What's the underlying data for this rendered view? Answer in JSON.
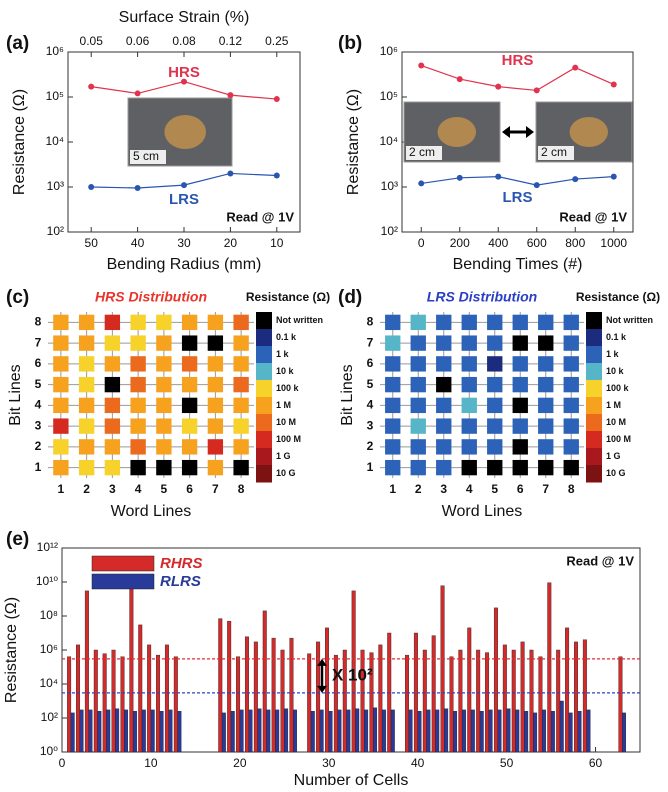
{
  "chart_data": [
    {
      "type": "line",
      "panel_label": "(a)",
      "xlabel": "Bending Radius (mm)",
      "ylabel": "Resistance (Ω)",
      "x2label": "Surface Strain (%)",
      "categories": [
        50,
        40,
        30,
        20,
        10
      ],
      "x2categories": [
        0.05,
        0.06,
        0.08,
        0.12,
        0.25
      ],
      "log_y": true,
      "ylim": [
        100,
        1000000
      ],
      "yticks": [
        {
          "value": 100,
          "label": "10²"
        },
        {
          "value": 1000,
          "label": "10³"
        },
        {
          "value": 10000,
          "label": "10⁴"
        },
        {
          "value": 100000,
          "label": "10⁵"
        },
        {
          "value": 1000000,
          "label": "10⁶"
        }
      ],
      "series": [
        {
          "name": "HRS",
          "color": "#e0334d",
          "values": [
            170000,
            120000,
            220000,
            110000,
            90000
          ]
        },
        {
          "name": "LRS",
          "color": "#2a55b0",
          "values": [
            1000,
            950,
            1100,
            2000,
            1800
          ]
        }
      ],
      "annotation": "Read @ 1V",
      "inset_labels": [
        "5 cm"
      ]
    },
    {
      "type": "line",
      "panel_label": "(b)",
      "xlabel": "Bending Times (#)",
      "ylabel": "Resistance (Ω)",
      "x": [
        0,
        200,
        400,
        600,
        800,
        1000
      ],
      "xlim": [
        -100,
        1100
      ],
      "xticks": [
        0,
        200,
        400,
        600,
        800,
        1000
      ],
      "log_y": true,
      "ylim": [
        100,
        1000000
      ],
      "yticks": [
        {
          "value": 100,
          "label": "10²"
        },
        {
          "value": 1000,
          "label": "10³"
        },
        {
          "value": 10000,
          "label": "10⁴"
        },
        {
          "value": 100000,
          "label": "10⁵"
        },
        {
          "value": 1000000,
          "label": "10⁶"
        }
      ],
      "series": [
        {
          "name": "HRS",
          "color": "#e0334d",
          "values": [
            500000,
            250000,
            170000,
            140000,
            450000,
            190000
          ]
        },
        {
          "name": "LRS",
          "color": "#2a55b0",
          "values": [
            1200,
            1600,
            1700,
            1100,
            1500,
            1700
          ]
        }
      ],
      "annotation": "Read @ 1V",
      "inset_labels": [
        "2 cm",
        "2 cm"
      ]
    },
    {
      "type": "heatmap",
      "panel_label": "(c)",
      "title": "HRS Distribution",
      "title_color": "#e8342a",
      "xlabel": "Word Lines",
      "ylabel": "Bit Lines",
      "x": [
        1,
        2,
        3,
        4,
        5,
        6,
        7,
        8
      ],
      "y": [
        1,
        2,
        3,
        4,
        5,
        6,
        7,
        8
      ],
      "values": [
        [
          1000000,
          300000,
          300000,
          null,
          null,
          null,
          1000000,
          null
        ],
        [
          300000,
          1000000,
          1000000,
          10000000,
          1000000,
          1000000,
          100000000,
          1000000
        ],
        [
          100000000,
          300000,
          10000000,
          1000000,
          1000000,
          300000,
          1000000,
          300000
        ],
        [
          1000000,
          1000000,
          10000000,
          1000000,
          1000000,
          null,
          1000000,
          1000000
        ],
        [
          1000000,
          300000,
          null,
          10000000,
          1000000,
          1000000,
          1000000,
          10000000
        ],
        [
          1000000,
          300000,
          1000000,
          10000000,
          1000000,
          10000000,
          1000000,
          1000000
        ],
        [
          1000000,
          1000000,
          300000,
          300000,
          1000000,
          null,
          null,
          1000000
        ],
        [
          1000000,
          1000000,
          100000000,
          300000,
          300000,
          1000000,
          1000000,
          10000000
        ]
      ],
      "colorbar_title": "Resistance (Ω)",
      "not_written_label": "Not written",
      "not_written_color": "#000000",
      "colorbar_ticks": [
        {
          "value": 100,
          "label": "0.1 k"
        },
        {
          "value": 1000,
          "label": "1 k"
        },
        {
          "value": 10000,
          "label": "10 k"
        },
        {
          "value": 100000,
          "label": "100 k"
        },
        {
          "value": 1000000,
          "label": "1 M"
        },
        {
          "value": 10000000,
          "label": "10 M"
        },
        {
          "value": 100000000,
          "label": "100 M"
        },
        {
          "value": 1000000000,
          "label": "1 G"
        },
        {
          "value": 10000000000,
          "label": "10 G"
        }
      ],
      "colorbar_colors": [
        "#1b2c7e",
        "#2c62b8",
        "#56b6c8",
        "#f6d22a",
        "#f6a21e",
        "#ec6a1e",
        "#d42a20",
        "#a8181c",
        "#7c1212"
      ]
    },
    {
      "type": "heatmap",
      "panel_label": "(d)",
      "title": "LRS Distribution",
      "title_color": "#2a3fc4",
      "xlabel": "Word Lines",
      "ylabel": "Bit Lines",
      "x": [
        1,
        2,
        3,
        4,
        5,
        6,
        7,
        8
      ],
      "y": [
        1,
        2,
        3,
        4,
        5,
        6,
        7,
        8
      ],
      "values": [
        [
          1000,
          1000,
          1000,
          null,
          null,
          null,
          null,
          null
        ],
        [
          1000,
          1000,
          1000,
          1000,
          1000,
          null,
          1000,
          1000
        ],
        [
          1000,
          10000,
          1000,
          1000,
          1000,
          1000,
          1000,
          1000
        ],
        [
          1000,
          1000,
          1000,
          10000,
          1000,
          null,
          1000,
          1000
        ],
        [
          1000,
          1000,
          null,
          1000,
          1000,
          1000,
          1000,
          1000
        ],
        [
          1000,
          1000,
          1000,
          1000,
          100,
          1000,
          1000,
          1000
        ],
        [
          10000,
          1000,
          1000,
          1000,
          1000,
          null,
          null,
          1000
        ],
        [
          1000,
          10000,
          1000,
          1000,
          1000,
          1000,
          1000,
          1000
        ]
      ],
      "colorbar_title": "Resistance (Ω)",
      "not_written_label": "Not written",
      "not_written_color": "#000000",
      "colorbar_ticks": [
        {
          "value": 100,
          "label": "0.1 k"
        },
        {
          "value": 1000,
          "label": "1 k"
        },
        {
          "value": 10000,
          "label": "10 k"
        },
        {
          "value": 100000,
          "label": "100 k"
        },
        {
          "value": 1000000,
          "label": "1 M"
        },
        {
          "value": 10000000,
          "label": "10 M"
        },
        {
          "value": 100000000,
          "label": "100 M"
        },
        {
          "value": 1000000000,
          "label": "1 G"
        },
        {
          "value": 10000000000,
          "label": "10 G"
        }
      ],
      "colorbar_colors": [
        "#1b2c7e",
        "#2c62b8",
        "#56b6c8",
        "#f6d22a",
        "#f6a21e",
        "#ec6a1e",
        "#d42a20",
        "#a8181c",
        "#7c1212"
      ]
    },
    {
      "type": "bar",
      "panel_label": "(e)",
      "xlabel": "Number of Cells",
      "ylabel": "Resistance (Ω)",
      "log_y": true,
      "xlim": [
        0,
        65
      ],
      "xticks": [
        0,
        10,
        20,
        30,
        40,
        50,
        60
      ],
      "ylim": [
        1,
        1000000000000
      ],
      "yticks": [
        {
          "value": 1,
          "label": "10⁰"
        },
        {
          "value": 100,
          "label": "10²"
        },
        {
          "value": 10000,
          "label": "10⁴"
        },
        {
          "value": 1000000,
          "label": "10⁶"
        },
        {
          "value": 100000000,
          "label": "10⁸"
        },
        {
          "value": 10000000000,
          "label": "10¹⁰"
        },
        {
          "value": 1000000000000,
          "label": "10¹²"
        }
      ],
      "x": [
        1,
        2,
        3,
        4,
        5,
        6,
        7,
        8,
        9,
        10,
        11,
        12,
        13,
        18,
        19,
        20,
        21,
        22,
        23,
        24,
        25,
        26,
        28,
        29,
        30,
        31,
        32,
        33,
        34,
        35,
        36,
        37,
        39,
        40,
        41,
        42,
        43,
        44,
        45,
        46,
        47,
        48,
        49,
        50,
        51,
        52,
        53,
        54,
        55,
        56,
        57,
        58,
        59,
        63
      ],
      "series": [
        {
          "name": "RHRS",
          "color": "#d42a2a",
          "values": [
            400000,
            2000000,
            3000000000,
            1000000,
            600000,
            1000000,
            400000,
            4000000000,
            30000000,
            2000000,
            500000,
            2000000,
            400000,
            70000000,
            50000000,
            400000,
            6000000,
            3000000,
            200000000,
            5000000,
            1000000,
            5000000,
            600000,
            3000000,
            20000000,
            500000,
            1000000,
            3000000000,
            1000000,
            700000,
            2000000,
            10000000,
            500000,
            10000000,
            1000000,
            7000000,
            6000000000,
            400000,
            1000000,
            20000000,
            1000000,
            700000,
            300000000,
            2000000,
            1000000,
            3000000,
            1000000,
            400000,
            9000000000,
            1000000,
            20000000,
            3000000,
            4000000,
            400000
          ]
        },
        {
          "name": "RLRS",
          "color": "#283a9a",
          "values": [
            200,
            300,
            300,
            250,
            300,
            350,
            300,
            250,
            300,
            300,
            250,
            300,
            250,
            200,
            250,
            300,
            300,
            350,
            300,
            300,
            350,
            300,
            250,
            300,
            250,
            300,
            300,
            350,
            300,
            400,
            300,
            300,
            300,
            250,
            300,
            300,
            350,
            250,
            300,
            300,
            250,
            300,
            300,
            350,
            300,
            250,
            200,
            300,
            250,
            1000,
            200,
            250,
            300,
            200
          ]
        }
      ],
      "reference_lines": [
        {
          "value": 300000,
          "color": "#e03030"
        },
        {
          "value": 3000,
          "color": "#3040c0"
        }
      ],
      "annotation": "Read @ 1V",
      "gap_annotation": "X 10²"
    }
  ]
}
